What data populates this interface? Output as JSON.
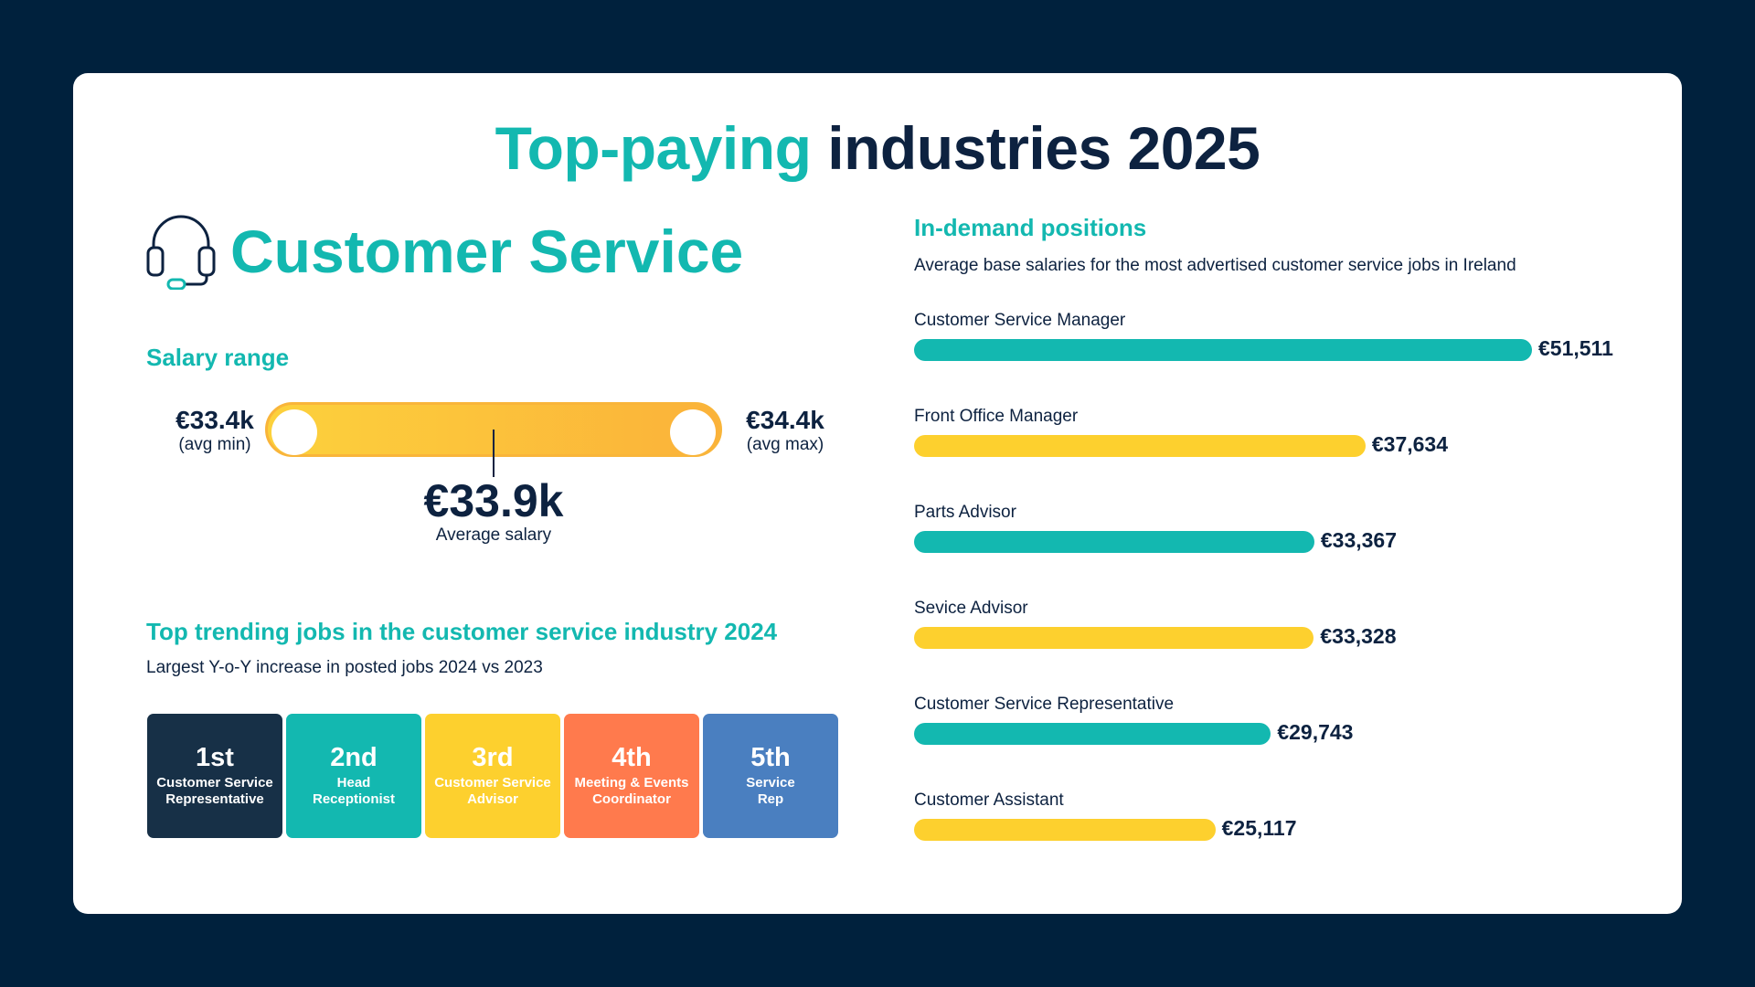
{
  "title": {
    "accent": "Top-paying",
    "rest": "industries 2025"
  },
  "industry": {
    "name": "Customer Service",
    "icon": "headset-icon"
  },
  "salary_range": {
    "heading": "Salary range",
    "min_value": "€33.4k",
    "min_label": "(avg min)",
    "max_value": "€34.4k",
    "max_label": "(avg max)",
    "avg_value": "€33.9k",
    "avg_label": "Average salary"
  },
  "trending": {
    "heading": "Top trending jobs in the customer service industry 2024",
    "subtitle": "Largest Y-o-Y increase in posted jobs 2024 vs 2023",
    "items": [
      {
        "rank": "1st",
        "line1": "Customer Service",
        "line2": "Representative",
        "color": "#173047"
      },
      {
        "rank": "2nd",
        "line1": "Head",
        "line2": "Receptionist",
        "color": "#13b8b0"
      },
      {
        "rank": "3rd",
        "line1": "Customer Service",
        "line2": "Advisor",
        "color": "#fdd02e"
      },
      {
        "rank": "4th",
        "line1": "Meeting & Events",
        "line2": "Coordinator",
        "color": "#ff7a4d"
      },
      {
        "rank": "5th",
        "line1": "Service",
        "line2": "Rep",
        "color": "#4a7fc0"
      }
    ]
  },
  "demand": {
    "heading": "In-demand positions",
    "subtitle": "Average base salaries for the most advertised customer service jobs in Ireland"
  },
  "colors": {
    "teal": "#13b8b0",
    "yellow": "#fdd02e",
    "navy": "#0d2240"
  },
  "chart_data": {
    "type": "bar",
    "orientation": "horizontal",
    "categories": [
      "Customer Service Manager",
      "Front Office Manager",
      "Parts Advisor",
      "Sevice Advisor",
      "Customer Service Representative",
      "Customer Assistant"
    ],
    "values": [
      51511,
      37634,
      33367,
      33328,
      29743,
      25117
    ],
    "value_labels": [
      "€51,511",
      "€37,634",
      "€33,367",
      "€33,328",
      "€29,743",
      "€25,117"
    ],
    "bar_colors": [
      "#13b8b0",
      "#fdd02e",
      "#13b8b0",
      "#fdd02e",
      "#13b8b0",
      "#fdd02e"
    ],
    "xlim": [
      0,
      51511
    ],
    "grid": false
  }
}
